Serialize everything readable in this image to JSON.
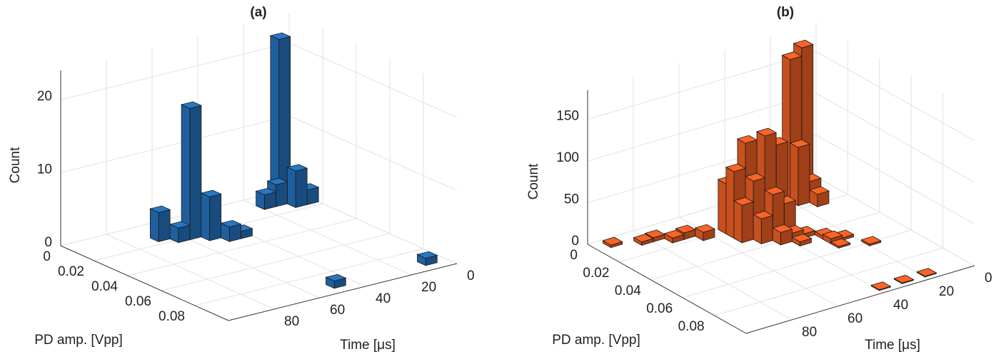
{
  "chart_data": [
    {
      "type": "bar3d",
      "title": "(a)",
      "xlabel": "PD amp. [Vpp]",
      "ylabel": "Time [μs]",
      "zlabel": "Count",
      "color": "#1f5f9e",
      "xlim": [
        0,
        0.1
      ],
      "ylim": [
        0,
        100
      ],
      "zlim": [
        0,
        24
      ],
      "xticks": [
        0,
        0.02,
        0.04,
        0.06,
        0.08
      ],
      "yticks": [
        0,
        20,
        40,
        60,
        80
      ],
      "zticks": [
        0,
        10,
        20
      ],
      "bars": {
        "x": [
          0.005,
          0.015,
          0.01,
          0.01,
          0.015,
          0.02,
          0.025,
          0.03,
          0.015,
          0.02,
          0.03,
          0.0925,
          0.0925
        ],
        "y": [
          7.5,
          7.5,
          12.5,
          17.5,
          2.5,
          57.5,
          52.5,
          47.5,
          67.5,
          62.5,
          42.5,
          47.5,
          7.5
        ],
        "values": [
          22,
          5,
          3,
          2,
          2,
          18,
          6,
          2,
          4,
          2,
          1,
          1,
          1
        ]
      }
    },
    {
      "type": "bar3d",
      "title": "(b)",
      "xlabel": "PD amp. [Vpp]",
      "ylabel": "Time [μs]",
      "zlabel": "Count",
      "color": "#c8501e",
      "xlim": [
        0,
        0.1
      ],
      "ylim": [
        0,
        100
      ],
      "zlim": [
        0,
        185
      ],
      "xticks": [
        0,
        0.02,
        0.04,
        0.06,
        0.08
      ],
      "yticks": [
        0,
        20,
        40,
        60,
        80
      ],
      "zticks": [
        0,
        50,
        100,
        150
      ],
      "bars": {
        "x": [
          0.01,
          0.01,
          0.015,
          0.015,
          0.02,
          0.025,
          0.025,
          0.03,
          0.025,
          0.03,
          0.03,
          0.035,
          0.035,
          0.02,
          0.03,
          0.035,
          0.04,
          0.04,
          0.02,
          0.025,
          0.005,
          0.01,
          0.01,
          0.015,
          0.015,
          0.02,
          0.04,
          0.045,
          0.05,
          0.05,
          0.045,
          0.055,
          0.06,
          0.095,
          0.095,
          0.095
        ],
        "y": [
          17.5,
          12.5,
          17.5,
          12.5,
          12.5,
          52.5,
          47.5,
          42.5,
          42.5,
          37.5,
          47.5,
          42.5,
          37.5,
          52.5,
          52.5,
          47.5,
          42.5,
          37.5,
          37.5,
          32.5,
          92.5,
          82.5,
          77.5,
          72.5,
          67.5,
          62.5,
          32.5,
          27.5,
          22.5,
          27.5,
          37.5,
          27.5,
          17.5,
          37.5,
          27.5,
          17.5
        ],
        "values": [
          170,
          180,
          70,
          25,
          15,
          80,
          110,
          120,
          100,
          105,
          70,
          55,
          40,
          60,
          45,
          30,
          15,
          10,
          30,
          20,
          3,
          4,
          5,
          6,
          8,
          10,
          5,
          4,
          3,
          6,
          5,
          2,
          2,
          1,
          1,
          1
        ]
      }
    }
  ]
}
